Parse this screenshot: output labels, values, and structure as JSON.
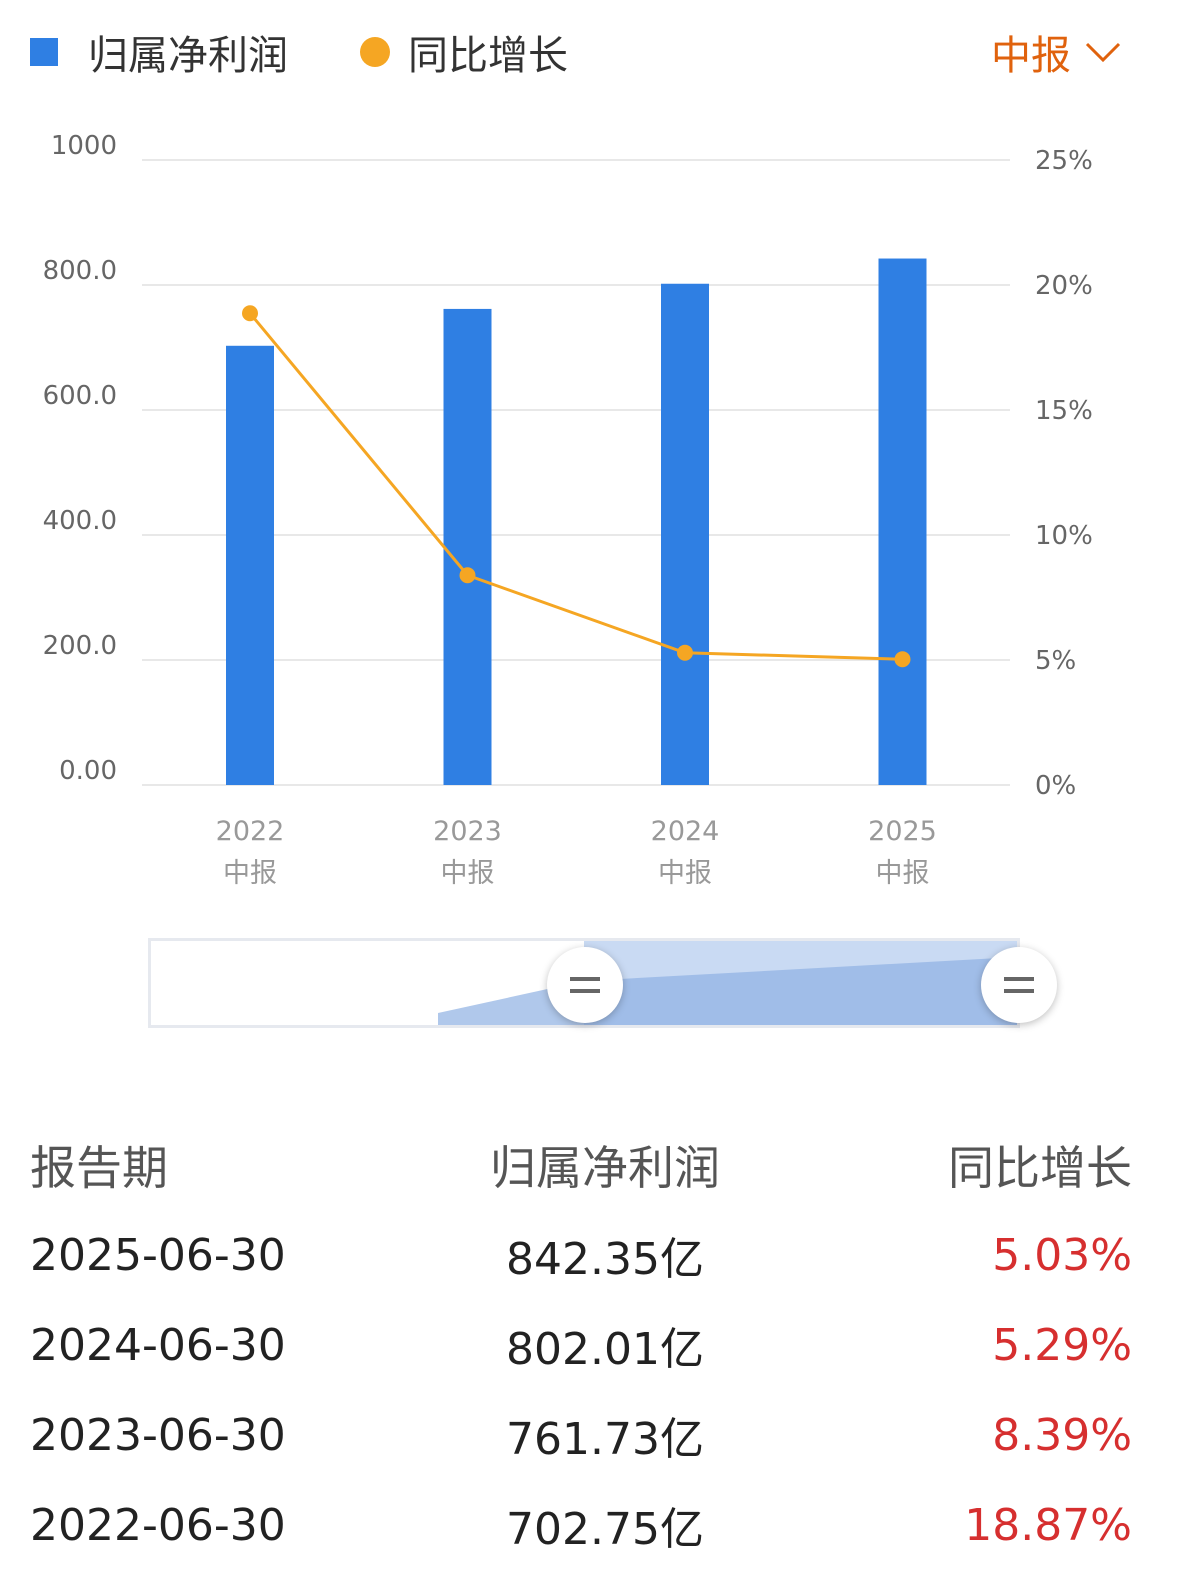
{
  "legend": {
    "profit_label": "归属净利润",
    "growth_label": "同比增长"
  },
  "period_selector": {
    "label": "中报",
    "icon": "chevron-down-icon"
  },
  "colors": {
    "bar": "#2f7fe3",
    "line": "#f5a623",
    "accent": "#e0620d",
    "growth_text": "#d62f2f",
    "grid": "#e8e8e8"
  },
  "chart_data": {
    "type": "bar",
    "categories": [
      [
        "2022",
        "中报"
      ],
      [
        "2023",
        "中报"
      ],
      [
        "2024",
        "中报"
      ],
      [
        "2025",
        "中报"
      ]
    ],
    "series": [
      {
        "name": "归属净利润",
        "type": "bar",
        "axis": "left",
        "values": [
          702.75,
          761.73,
          802.01,
          842.35
        ]
      },
      {
        "name": "同比增长",
        "type": "line",
        "axis": "right",
        "values": [
          18.87,
          8.39,
          5.29,
          5.03
        ]
      }
    ],
    "y_left": {
      "ticks": [
        "1000",
        "800.0",
        "600.0",
        "400.0",
        "200.0",
        "0.00"
      ],
      "range": [
        0,
        1000
      ]
    },
    "y_right": {
      "ticks": [
        "25%",
        "20%",
        "15%",
        "10%",
        "5%",
        "0%"
      ],
      "range": [
        0,
        25
      ]
    },
    "grid": true,
    "legend_position": "top-left"
  },
  "range_slider": {
    "start_fraction": 0.5,
    "end_fraction": 1.0
  },
  "table": {
    "headers": [
      "报告期",
      "归属净利润",
      "同比增长"
    ],
    "rows": [
      [
        "2025-06-30",
        "842.35亿",
        "5.03%"
      ],
      [
        "2024-06-30",
        "802.01亿",
        "5.29%"
      ],
      [
        "2023-06-30",
        "761.73亿",
        "8.39%"
      ],
      [
        "2022-06-30",
        "702.75亿",
        "18.87%"
      ]
    ]
  }
}
